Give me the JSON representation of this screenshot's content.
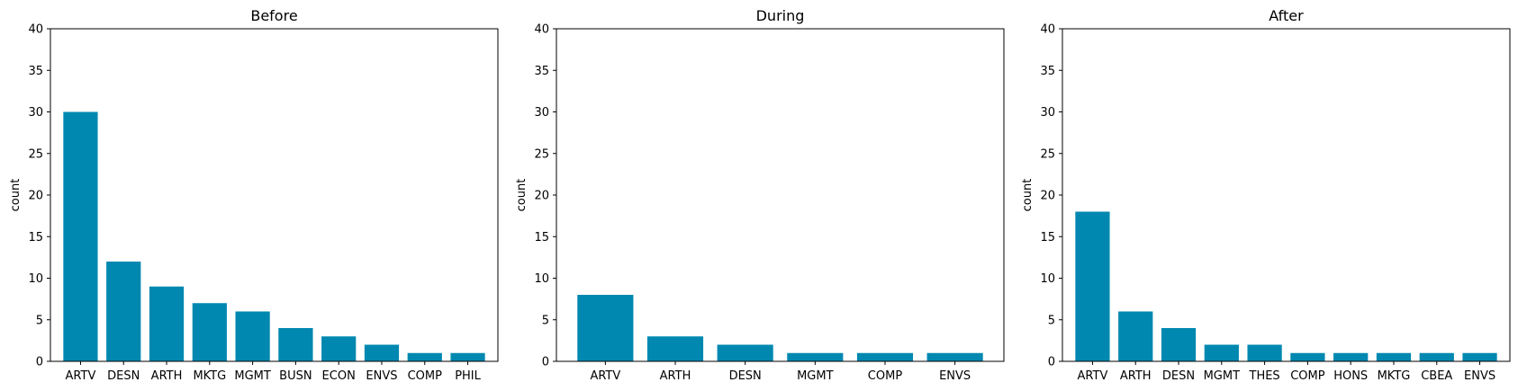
{
  "chart_data": [
    {
      "type": "bar",
      "title": "Before",
      "xlabel": "",
      "ylabel": "count",
      "ylim": [
        0,
        40
      ],
      "yticks": [
        0,
        5,
        10,
        15,
        20,
        25,
        30,
        35,
        40
      ],
      "categories": [
        "ARTV",
        "DESN",
        "ARTH",
        "MKTG",
        "MGMT",
        "BUSN",
        "ECON",
        "ENVS",
        "COMP",
        "PHIL"
      ],
      "values": [
        30,
        12,
        9,
        7,
        6,
        4,
        3,
        2,
        1,
        1
      ],
      "color": "#0088b0",
      "grid": false
    },
    {
      "type": "bar",
      "title": "During",
      "xlabel": "",
      "ylabel": "count",
      "ylim": [
        0,
        40
      ],
      "yticks": [
        0,
        5,
        10,
        15,
        20,
        25,
        30,
        35,
        40
      ],
      "categories": [
        "ARTV",
        "ARTH",
        "DESN",
        "MGMT",
        "COMP",
        "ENVS"
      ],
      "values": [
        8,
        3,
        2,
        1,
        1,
        1
      ],
      "color": "#0088b0",
      "grid": false
    },
    {
      "type": "bar",
      "title": "After",
      "xlabel": "",
      "ylabel": "count",
      "ylim": [
        0,
        40
      ],
      "yticks": [
        0,
        5,
        10,
        15,
        20,
        25,
        30,
        35,
        40
      ],
      "categories": [
        "ARTV",
        "ARTH",
        "DESN",
        "MGMT",
        "THES",
        "COMP",
        "HONS",
        "MKTG",
        "CBEA",
        "ENVS"
      ],
      "values": [
        18,
        6,
        4,
        2,
        2,
        1,
        1,
        1,
        1,
        1
      ],
      "color": "#0088b0",
      "grid": false
    }
  ]
}
